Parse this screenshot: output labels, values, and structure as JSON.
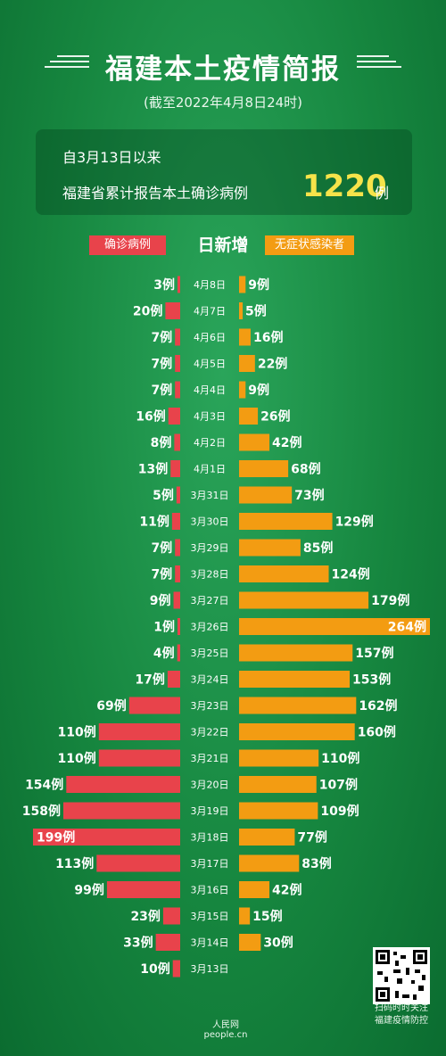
{
  "header": {
    "title": "福建本土疫情简报",
    "subtitle": "(截至2022年4月8日24时)"
  },
  "summary": {
    "line1": "自3月13日以来",
    "line2": "福建省累计报告本土确诊病例",
    "total": "1220",
    "unit": "例"
  },
  "legend": {
    "left": "确诊病例",
    "mid": "日新增",
    "right": "无症状感染者"
  },
  "colors": {
    "confirmed": "#e8434b",
    "asymptomatic": "#f39c12"
  },
  "chart_data": {
    "type": "bar",
    "title": "日新增",
    "unit": "例",
    "categories": [
      "4月8日",
      "4月7日",
      "4月6日",
      "4月5日",
      "4月4日",
      "4月3日",
      "4月2日",
      "4月1日",
      "3月31日",
      "3月30日",
      "3月29日",
      "3月28日",
      "3月27日",
      "3月26日",
      "3月25日",
      "3月24日",
      "3月23日",
      "3月22日",
      "3月21日",
      "3月20日",
      "3月19日",
      "3月18日",
      "3月17日",
      "3月16日",
      "3月15日",
      "3月14日",
      "3月13日"
    ],
    "series": [
      {
        "name": "确诊病例",
        "values": [
          3,
          20,
          7,
          7,
          7,
          16,
          8,
          13,
          5,
          11,
          7,
          7,
          9,
          1,
          4,
          17,
          69,
          110,
          110,
          154,
          158,
          199,
          113,
          99,
          23,
          33,
          10
        ]
      },
      {
        "name": "无症状感染者",
        "values": [
          9,
          5,
          16,
          22,
          9,
          26,
          42,
          68,
          73,
          129,
          85,
          124,
          179,
          264,
          157,
          153,
          162,
          160,
          110,
          107,
          109,
          77,
          83,
          42,
          15,
          30,
          null
        ]
      }
    ]
  },
  "footer": {
    "qr_line1": "扫码时时关注",
    "qr_line2": "福建疫情防控",
    "logo": "人民网 people.cn"
  }
}
